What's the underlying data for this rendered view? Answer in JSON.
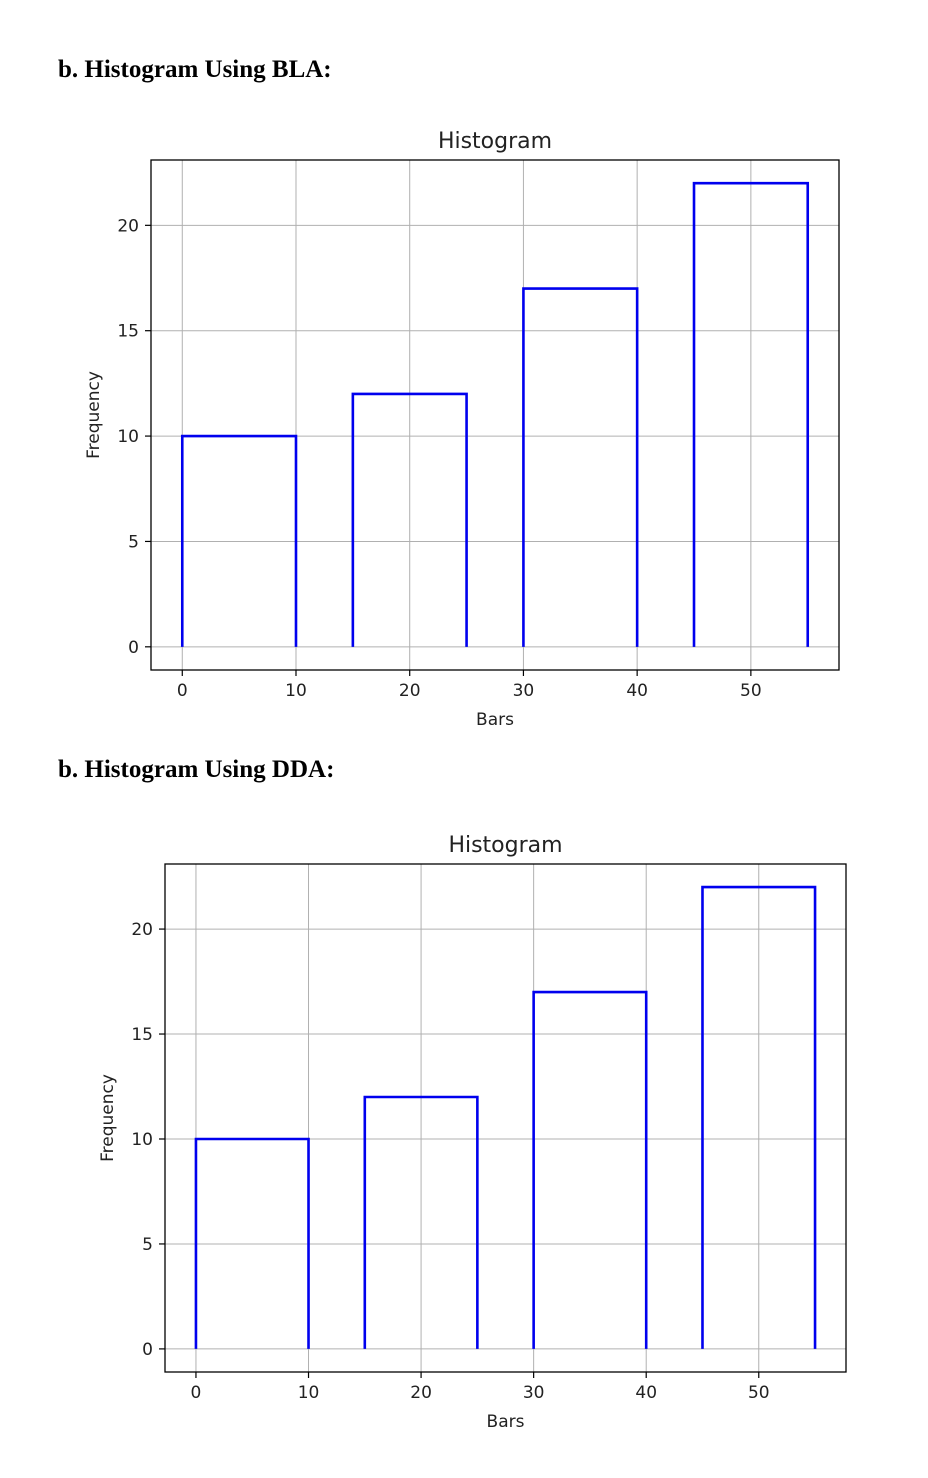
{
  "headings": [
    "b. Histogram Using BLA:",
    "b. Histogram Using DDA:"
  ],
  "chart_data": [
    {
      "type": "bar",
      "title": "Histogram",
      "xlabel": "Bars",
      "ylabel": "Frequency",
      "bars": [
        {
          "x_start": 0,
          "x_end": 10,
          "value": 10
        },
        {
          "x_start": 15,
          "x_end": 25,
          "value": 12
        },
        {
          "x_start": 30,
          "x_end": 40,
          "value": 17
        },
        {
          "x_start": 45,
          "x_end": 55,
          "value": 22
        }
      ],
      "xlim": [
        -2.75,
        57.75
      ],
      "ylim": [
        -1.1,
        23.1
      ],
      "xticks": [
        0,
        10,
        20,
        30,
        40,
        50
      ],
      "yticks": [
        0,
        5,
        10,
        15,
        20
      ],
      "grid": true,
      "style": "outline",
      "bar_color": "#0000ee",
      "grid_color": "#b0b0b0"
    },
    {
      "type": "bar",
      "title": "Histogram",
      "xlabel": "Bars",
      "ylabel": "Frequency",
      "bars": [
        {
          "x_start": 0,
          "x_end": 10,
          "value": 10
        },
        {
          "x_start": 15,
          "x_end": 25,
          "value": 12
        },
        {
          "x_start": 30,
          "x_end": 40,
          "value": 17
        },
        {
          "x_start": 45,
          "x_end": 55,
          "value": 22
        }
      ],
      "xlim": [
        -2.75,
        57.75
      ],
      "ylim": [
        -1.1,
        23.1
      ],
      "xticks": [
        0,
        10,
        20,
        30,
        40,
        50
      ],
      "yticks": [
        0,
        5,
        10,
        15,
        20
      ],
      "grid": true,
      "style": "outline",
      "bar_color": "#0000ee",
      "grid_color": "#b0b0b0"
    }
  ]
}
